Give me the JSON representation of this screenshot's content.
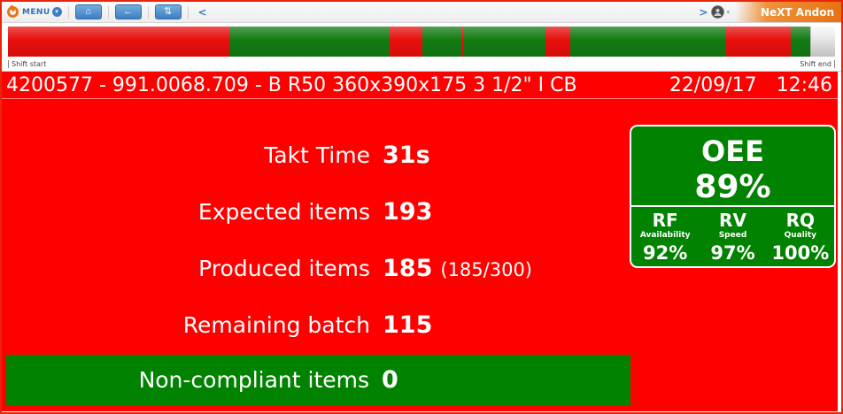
{
  "toolbar": {
    "menu_label": "Menu",
    "menu_badge_glyph": "▾",
    "home_icon_glyph": "⌂",
    "back_icon_glyph": "←",
    "refresh_icon_glyph": "⇅",
    "back_glyph": "<",
    "forward_glyph": ">",
    "avatar_caret_glyph": "▾",
    "app_title": "NeXT Andon"
  },
  "timeline": {
    "shift_start_label": "Shift start",
    "shift_end_label": "Shift end",
    "segments": [
      {
        "status": "stop",
        "pct": 26.76
      },
      {
        "status": "run",
        "pct": 19.4
      },
      {
        "status": "stop",
        "pct": 3.94
      },
      {
        "status": "run",
        "pct": 4.69
      },
      {
        "status": "stop",
        "pct": 0.32
      },
      {
        "status": "run",
        "pct": 9.91
      },
      {
        "status": "stop",
        "pct": 2.99
      },
      {
        "status": "run",
        "pct": 18.87
      },
      {
        "status": "stop",
        "pct": 7.78
      },
      {
        "status": "run",
        "pct": 2.35
      },
      {
        "status": "remaining",
        "pct": 2.99
      }
    ]
  },
  "header": {
    "order_title": "4200577 - 991.0068.709 - B R50 360x390x175 3 1/2\" I CB",
    "date": "22/09/17",
    "time": "12:46"
  },
  "metrics": {
    "rows": [
      {
        "label": "Takt Time",
        "value": "31s"
      },
      {
        "label": "Expected items",
        "value": "193"
      },
      {
        "label": "Produced items",
        "value": "185",
        "extra": "(185/300)"
      },
      {
        "label": "Remaining batch",
        "value": "115"
      }
    ],
    "non_compliant": {
      "label": "Non-compliant items",
      "value": "0"
    }
  },
  "oee": {
    "title": "OEE",
    "value": "89%",
    "components": [
      {
        "code": "RF",
        "name": "Availability",
        "value": "92%"
      },
      {
        "code": "RV",
        "name": "Speed",
        "value": "97%"
      },
      {
        "code": "RQ",
        "name": "Quality",
        "value": "100%"
      }
    ]
  },
  "colors": {
    "stop": "#e60f0c",
    "run": "#127a12",
    "remaining": "#e0e0e0",
    "alert_red": "#fe0000",
    "ok_green": "#018201",
    "accent_orange": "#e87511",
    "button_blue": "#4d8fce"
  }
}
